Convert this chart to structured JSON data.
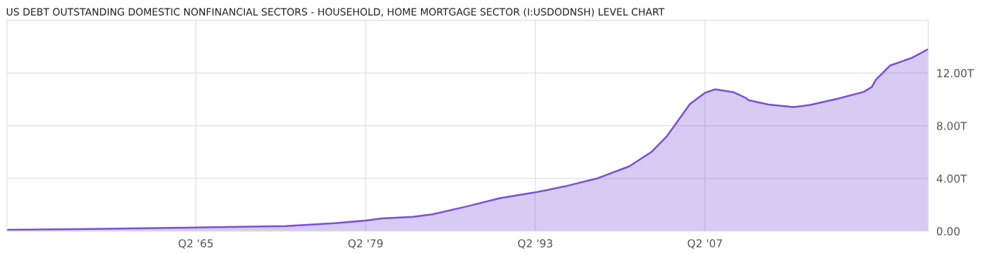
{
  "chart_data": {
    "type": "area",
    "title": "US DEBT OUTSTANDING DOMESTIC NONFINANCIAL SECTORS - HOUSEHOLD, HOME MORTGAGE SECTOR (I:USDODNSH) LEVEL CHART",
    "x": [
      "1949-10",
      "1957-02",
      "1965-05",
      "1972-10",
      "1976-10",
      "1979-05",
      "1980-09",
      "1983-04",
      "1984-11",
      "1987-10",
      "1990-06",
      "1993-04",
      "1995-10",
      "1998-07",
      "2001-02",
      "2002-12",
      "2004-03",
      "2006-02",
      "2007-05",
      "2008-03",
      "2009-09",
      "2010-10",
      "2010-12",
      "2012-08",
      "2014-09",
      "2016-01",
      "2018-05",
      "2020-06",
      "2021-02",
      "2021-06",
      "2022-08",
      "2024-06",
      "2025-10"
    ],
    "series": [
      {
        "color": "#7a4fd8",
        "values": [
          0.1,
          0.17,
          0.27,
          0.39,
          0.6,
          0.8,
          0.97,
          1.09,
          1.28,
          1.89,
          2.5,
          2.93,
          3.39,
          4.02,
          4.92,
          6.01,
          7.18,
          9.65,
          10.5,
          10.76,
          10.55,
          10.08,
          9.94,
          9.6,
          9.41,
          9.58,
          10.06,
          10.57,
          10.93,
          11.47,
          12.56,
          13.16,
          13.82
        ]
      }
    ],
    "xlim": [
      "1949-10",
      "2025-10"
    ],
    "xticks": [
      {
        "value": "1965-05",
        "label": "Q2 '65"
      },
      {
        "value": "1979-05",
        "label": "Q2 '79"
      },
      {
        "value": "1993-05",
        "label": "Q2 '93"
      },
      {
        "value": "2007-05",
        "label": "Q2 '07"
      }
    ],
    "ylim": [
      0,
      16
    ],
    "yticks": [
      {
        "value": 0,
        "label": "0.00"
      },
      {
        "value": 4,
        "label": "4.00T"
      },
      {
        "value": 8,
        "label": "8.00T"
      },
      {
        "value": 12,
        "label": "12.00T"
      }
    ],
    "grid": true,
    "legend": false
  }
}
